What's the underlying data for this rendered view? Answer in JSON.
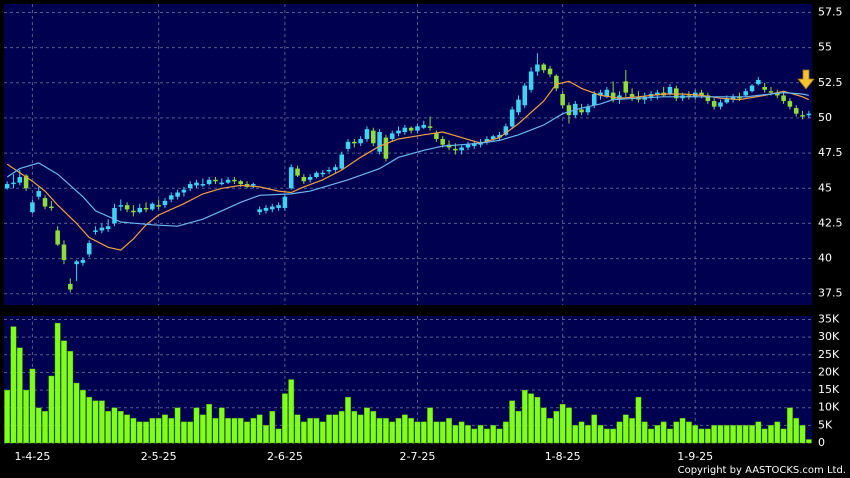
{
  "chart_data": [
    {
      "type": "candlestick",
      "up_color": "#3fd2f2",
      "down_color": "#8fdc3a",
      "xlim": [
        -0.5,
        127.5
      ],
      "ylim": [
        36.7,
        58.1
      ],
      "yticks": [
        37.5,
        40,
        42.5,
        45,
        47.5,
        50,
        52.5,
        55,
        57.5
      ],
      "grid": true,
      "candles": [
        [
          45.0,
          45.5,
          44.9,
          45.3
        ],
        [
          45.3,
          46.0,
          45.0,
          45.4
        ],
        [
          45.4,
          46.3,
          45.2,
          45.8
        ],
        [
          45.9,
          46.0,
          44.8,
          45.0
        ],
        [
          43.3,
          44.2,
          43.2,
          44.0
        ],
        [
          44.4,
          45.1,
          44.2,
          44.8
        ],
        [
          44.3,
          44.5,
          43.5,
          43.7
        ],
        [
          43.7,
          44.1,
          43.4,
          43.6
        ],
        [
          42.0,
          42.3,
          40.9,
          41.0
        ],
        [
          41.0,
          41.3,
          39.6,
          39.9
        ],
        [
          38.2,
          38.6,
          37.6,
          37.8
        ],
        [
          39.6,
          39.9,
          38.4,
          39.8
        ],
        [
          39.7,
          40.1,
          39.5,
          39.9
        ],
        [
          40.3,
          41.3,
          40.1,
          41.1
        ],
        [
          41.9,
          42.3,
          41.7,
          42.0
        ],
        [
          42.0,
          42.5,
          41.8,
          42.2
        ],
        [
          42.1,
          42.8,
          41.9,
          42.3
        ],
        [
          42.5,
          43.9,
          42.3,
          43.6
        ],
        [
          43.7,
          44.2,
          43.4,
          43.8
        ],
        [
          43.8,
          44.0,
          43.3,
          43.5
        ],
        [
          43.4,
          43.8,
          43.0,
          43.3
        ],
        [
          43.3,
          43.9,
          43.2,
          43.6
        ],
        [
          43.6,
          44.0,
          43.3,
          43.5
        ],
        [
          43.5,
          44.0,
          43.4,
          43.9
        ],
        [
          43.8,
          44.2,
          43.5,
          43.7
        ],
        [
          43.8,
          44.3,
          43.6,
          44.1
        ],
        [
          44.2,
          44.7,
          44.0,
          44.5
        ],
        [
          44.4,
          44.9,
          44.2,
          44.7
        ],
        [
          44.7,
          45.1,
          44.4,
          44.9
        ],
        [
          45.0,
          45.5,
          44.8,
          45.3
        ],
        [
          45.2,
          45.6,
          45.0,
          45.4
        ],
        [
          45.3,
          45.7,
          45.1,
          45.3
        ],
        [
          45.3,
          45.8,
          45.2,
          45.6
        ],
        [
          45.6,
          45.8,
          45.3,
          45.5
        ],
        [
          45.4,
          45.7,
          45.2,
          45.4
        ],
        [
          45.4,
          45.8,
          45.3,
          45.6
        ],
        [
          45.6,
          45.8,
          45.3,
          45.5
        ],
        [
          45.5,
          45.6,
          45.1,
          45.3
        ],
        [
          45.3,
          45.5,
          45.0,
          45.1
        ],
        [
          45.2,
          45.4,
          45.0,
          45.3
        ],
        [
          43.3,
          43.7,
          43.1,
          43.5
        ],
        [
          43.4,
          43.8,
          43.2,
          43.6
        ],
        [
          43.5,
          43.9,
          43.3,
          43.7
        ],
        [
          43.6,
          44.0,
          43.4,
          43.8
        ],
        [
          43.6,
          44.6,
          43.4,
          44.4
        ],
        [
          45.0,
          46.7,
          44.9,
          46.5
        ],
        [
          46.4,
          46.6,
          45.8,
          45.9
        ],
        [
          45.8,
          46.0,
          45.3,
          45.5
        ],
        [
          45.6,
          46.0,
          45.4,
          45.8
        ],
        [
          45.8,
          46.2,
          45.7,
          46.1
        ],
        [
          46.0,
          46.3,
          45.8,
          46.1
        ],
        [
          46.2,
          46.5,
          46.0,
          46.3
        ],
        [
          46.3,
          46.7,
          46.1,
          46.5
        ],
        [
          46.4,
          47.6,
          46.3,
          47.4
        ],
        [
          47.8,
          48.5,
          47.6,
          48.3
        ],
        [
          48.3,
          48.5,
          47.9,
          48.2
        ],
        [
          48.2,
          48.7,
          48.0,
          48.5
        ],
        [
          48.5,
          49.4,
          48.3,
          49.2
        ],
        [
          49.1,
          49.3,
          48.0,
          48.2
        ],
        [
          47.6,
          49.2,
          47.4,
          49.0
        ],
        [
          48.6,
          48.8,
          46.9,
          47.1
        ],
        [
          48.5,
          49.1,
          48.3,
          48.9
        ],
        [
          48.9,
          49.4,
          48.7,
          49.1
        ],
        [
          49.0,
          49.5,
          48.8,
          49.3
        ],
        [
          49.3,
          49.4,
          48.9,
          49.1
        ],
        [
          49.1,
          49.6,
          48.9,
          49.4
        ],
        [
          49.3,
          49.8,
          49.2,
          49.5
        ],
        [
          49.4,
          50.1,
          49.1,
          49.3
        ],
        [
          48.9,
          49.1,
          48.3,
          48.5
        ],
        [
          48.5,
          48.7,
          47.9,
          48.1
        ],
        [
          48.1,
          48.4,
          47.7,
          47.9
        ],
        [
          47.8,
          48.2,
          47.4,
          47.7
        ],
        [
          47.7,
          48.1,
          47.4,
          47.9
        ],
        [
          47.9,
          48.3,
          47.7,
          48.1
        ],
        [
          48.0,
          48.4,
          47.8,
          48.2
        ],
        [
          48.1,
          48.5,
          47.9,
          48.3
        ],
        [
          48.3,
          48.7,
          48.1,
          48.5
        ],
        [
          48.5,
          48.8,
          48.3,
          48.7
        ],
        [
          48.6,
          49.0,
          48.4,
          48.8
        ],
        [
          48.8,
          49.6,
          48.7,
          49.4
        ],
        [
          49.4,
          50.8,
          49.2,
          50.6
        ],
        [
          50.4,
          51.6,
          50.2,
          51.3
        ],
        [
          50.9,
          52.5,
          50.7,
          52.3
        ],
        [
          52.0,
          53.6,
          51.8,
          53.3
        ],
        [
          53.3,
          54.6,
          53.0,
          53.8
        ],
        [
          53.8,
          53.9,
          53.2,
          53.4
        ],
        [
          53.5,
          53.7,
          52.9,
          53.1
        ],
        [
          53.0,
          53.1,
          51.9,
          52.1
        ],
        [
          51.7,
          51.9,
          50.7,
          50.9
        ],
        [
          50.9,
          51.1,
          49.6,
          50.2
        ],
        [
          50.2,
          51.2,
          50.0,
          51.0
        ],
        [
          50.6,
          51.0,
          50.2,
          50.4
        ],
        [
          50.4,
          51.0,
          50.2,
          50.8
        ],
        [
          50.9,
          51.9,
          50.7,
          51.7
        ],
        [
          51.6,
          52.0,
          51.3,
          51.8
        ],
        [
          51.5,
          52.2,
          51.4,
          52.0
        ],
        [
          51.8,
          52.6,
          51.1,
          51.3
        ],
        [
          51.3,
          51.9,
          51.0,
          51.6
        ],
        [
          52.6,
          53.4,
          51.5,
          51.8
        ],
        [
          51.7,
          52.1,
          51.2,
          51.5
        ],
        [
          51.5,
          51.9,
          51.1,
          51.3
        ],
        [
          51.3,
          51.8,
          51.0,
          51.5
        ],
        [
          51.5,
          51.9,
          51.2,
          51.7
        ],
        [
          51.6,
          52.0,
          51.3,
          51.8
        ],
        [
          51.8,
          52.2,
          51.5,
          51.6
        ],
        [
          51.7,
          52.4,
          51.6,
          52.2
        ],
        [
          52.1,
          52.3,
          51.2,
          51.4
        ],
        [
          51.4,
          51.8,
          51.2,
          51.6
        ],
        [
          51.6,
          51.9,
          51.3,
          51.5
        ],
        [
          51.5,
          52.0,
          51.3,
          51.8
        ],
        [
          51.8,
          52.0,
          51.4,
          51.6
        ],
        [
          51.6,
          51.8,
          51.0,
          51.2
        ],
        [
          51.2,
          51.4,
          50.6,
          50.8
        ],
        [
          50.8,
          51.3,
          50.6,
          51.1
        ],
        [
          51.1,
          51.6,
          51.0,
          51.4
        ],
        [
          51.3,
          51.7,
          51.1,
          51.5
        ],
        [
          51.5,
          51.8,
          51.2,
          51.4
        ],
        [
          51.6,
          52.1,
          51.5,
          51.9
        ],
        [
          51.9,
          52.4,
          51.8,
          52.3
        ],
        [
          52.4,
          52.9,
          52.3,
          52.7
        ],
        [
          52.2,
          52.5,
          51.8,
          52.0
        ],
        [
          51.9,
          52.2,
          51.6,
          51.8
        ],
        [
          51.8,
          52.0,
          51.4,
          51.6
        ],
        [
          51.6,
          51.9,
          51.0,
          51.2
        ],
        [
          51.2,
          51.4,
          50.6,
          50.8
        ],
        [
          50.7,
          50.9,
          50.1,
          50.3
        ],
        [
          50.2,
          50.5,
          49.9,
          50.1
        ],
        [
          50.2,
          50.5,
          50.0,
          50.3
        ]
      ],
      "lines": [
        {
          "color": "#f0a040",
          "x": [
            0,
            4,
            6,
            8,
            11,
            13,
            16,
            18,
            20,
            22,
            24,
            28,
            31,
            34,
            37,
            40,
            43,
            45,
            47,
            50,
            53,
            56,
            59,
            62,
            66,
            69,
            72,
            75,
            78,
            81,
            85,
            87,
            89,
            91,
            94,
            97,
            100,
            104,
            107,
            110,
            113,
            116,
            120,
            123,
            126,
            127
          ],
          "values": [
            46.7,
            45.5,
            44.8,
            43.8,
            42.5,
            41.5,
            40.8,
            40.6,
            41.4,
            42.4,
            43.1,
            43.9,
            44.6,
            45.0,
            45.2,
            45.1,
            44.8,
            44.7,
            45.1,
            45.6,
            46.3,
            47.2,
            48.0,
            48.5,
            48.8,
            49.0,
            48.6,
            48.2,
            48.6,
            49.6,
            51.2,
            52.4,
            52.6,
            52.1,
            51.6,
            51.4,
            51.5,
            51.7,
            51.7,
            51.6,
            51.4,
            51.3,
            51.6,
            51.9,
            51.5,
            51.3
          ]
        },
        {
          "color": "#6ab8f0",
          "x": [
            0,
            2,
            5,
            8,
            12,
            14,
            18,
            23,
            27,
            31,
            34,
            37,
            40,
            45,
            48,
            51,
            54,
            59,
            62,
            66,
            69,
            72,
            75,
            78,
            81,
            85,
            88,
            91,
            94,
            96,
            100,
            104,
            110,
            117,
            123,
            126,
            127
          ],
          "values": [
            45.8,
            46.4,
            46.8,
            46.0,
            44.4,
            43.4,
            42.6,
            42.4,
            42.3,
            42.8,
            43.4,
            44.0,
            44.5,
            44.6,
            44.8,
            45.2,
            45.6,
            46.4,
            47.2,
            47.7,
            48.0,
            48.1,
            48.2,
            48.4,
            48.8,
            49.5,
            50.3,
            50.7,
            51.0,
            51.3,
            51.4,
            51.5,
            51.5,
            51.5,
            51.8,
            51.7,
            51.6
          ]
        }
      ]
    },
    {
      "type": "bar",
      "color": "#7fff1a",
      "xlim": [
        -0.5,
        127.5
      ],
      "ylim": [
        0,
        36000
      ],
      "grid": true,
      "yticks": [
        0,
        {
          "value": 5000,
          "label": "5K"
        },
        {
          "value": 10000,
          "label": "10K"
        },
        {
          "value": 15000,
          "label": "15K"
        },
        {
          "value": 20000,
          "label": "20K"
        },
        {
          "value": 25000,
          "label": "25K"
        },
        {
          "value": 30000,
          "label": "30K"
        },
        {
          "value": 35000,
          "label": "35K"
        }
      ],
      "xticks": [
        {
          "value": 4,
          "label": "1-4-25"
        },
        {
          "value": 24,
          "label": "2-5-25"
        },
        {
          "value": 44,
          "label": "2-6-25"
        },
        {
          "value": 65,
          "label": "2-7-25"
        },
        {
          "value": 88,
          "label": "1-8-25"
        },
        {
          "value": 109,
          "label": "1-9-25"
        }
      ],
      "values": [
        15000,
        33000,
        27000,
        15000,
        21000,
        10000,
        9000,
        19000,
        34000,
        29000,
        26000,
        17000,
        15000,
        13000,
        12000,
        12000,
        9000,
        10000,
        9000,
        8000,
        7000,
        6000,
        6000,
        7000,
        7000,
        8000,
        7000,
        10000,
        6000,
        6000,
        10000,
        8000,
        11000,
        7000,
        10000,
        7000,
        7000,
        7000,
        6000,
        7000,
        8000,
        5000,
        9000,
        4000,
        14000,
        18000,
        8000,
        6000,
        7000,
        7000,
        6000,
        8000,
        8000,
        9000,
        13000,
        9000,
        8000,
        10000,
        9000,
        7000,
        7000,
        6000,
        7000,
        8000,
        7000,
        6000,
        6000,
        10000,
        6000,
        6000,
        7000,
        5000,
        6000,
        5000,
        4000,
        5000,
        4000,
        5000,
        4000,
        6000,
        12000,
        9000,
        15000,
        14000,
        13000,
        10000,
        7000,
        9000,
        11000,
        10000,
        5000,
        6000,
        5000,
        8000,
        5000,
        4000,
        4000,
        6000,
        8000,
        7000,
        13000,
        6000,
        4000,
        5000,
        6000,
        4000,
        6000,
        7000,
        6000,
        5000,
        4000,
        4000,
        5000,
        5000,
        5000,
        5000,
        5000,
        5000,
        5000,
        6000,
        4000,
        5000,
        6000,
        4000,
        10000,
        7000,
        5000,
        1000
      ]
    }
  ],
  "footer": "Copyright by AASTOCKS.com Ltd."
}
